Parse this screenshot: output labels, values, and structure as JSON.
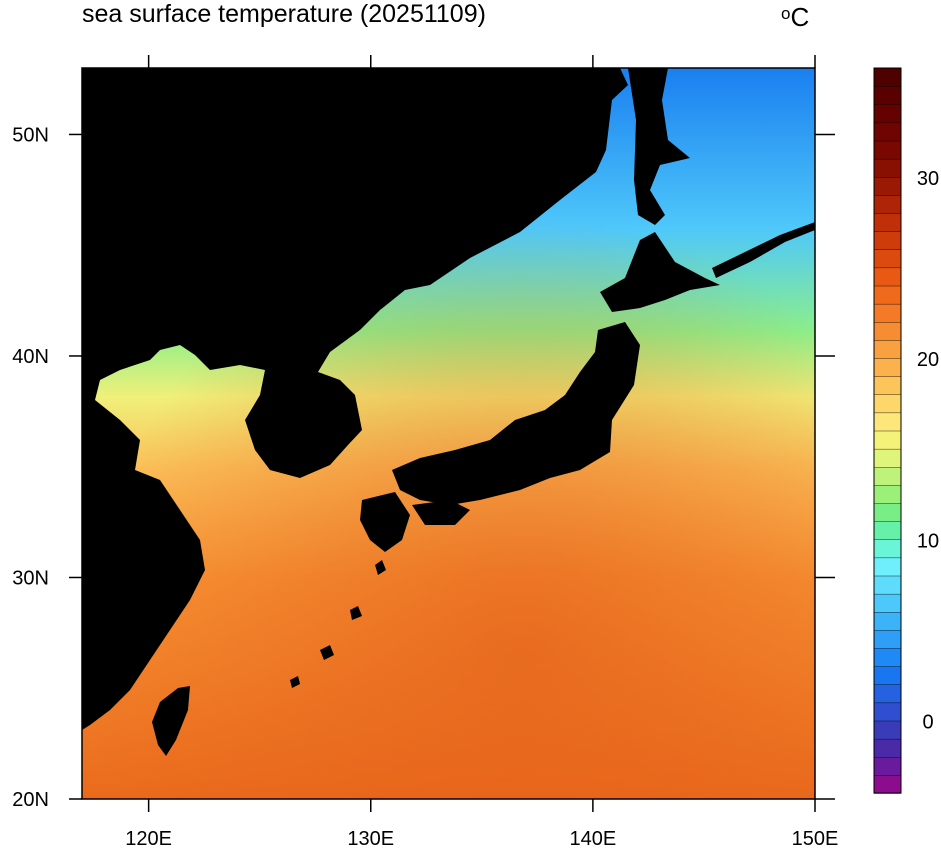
{
  "map": {
    "title": "sea surface temperature (20251109)",
    "unit_degree": "o",
    "unit_letter": "C",
    "lon_range": [
      117,
      150
    ],
    "lat_range": [
      20,
      53
    ],
    "lon_ticks": [
      {
        "value": 120,
        "label": "120E"
      },
      {
        "value": 130,
        "label": "130E"
      },
      {
        "value": 140,
        "label": "140E"
      },
      {
        "value": 150,
        "label": "150E"
      }
    ],
    "lat_ticks": [
      {
        "value": 20,
        "label": "20N"
      },
      {
        "value": 30,
        "label": "30N"
      },
      {
        "value": 40,
        "label": "40N"
      },
      {
        "value": 50,
        "label": "50N"
      }
    ],
    "land_color": "#000000"
  },
  "colorbar": {
    "min": -4,
    "max": 36,
    "step": 1,
    "tick_labels": [
      {
        "value": 0,
        "label": "0"
      },
      {
        "value": 10,
        "label": "10"
      },
      {
        "value": 20,
        "label": "20"
      },
      {
        "value": 30,
        "label": "30"
      }
    ],
    "colors": [
      "#8b0d8e",
      "#6a1a9c",
      "#4b2aa8",
      "#3a3bb8",
      "#2f4ed0",
      "#2561e0",
      "#1a76f0",
      "#1f89f5",
      "#2e9ef7",
      "#3cb3f8",
      "#4dc8fa",
      "#5fdcfb",
      "#6feefb",
      "#6af5d8",
      "#66f0a8",
      "#7aee86",
      "#9bf07a",
      "#bff27a",
      "#dff47a",
      "#f5f27a",
      "#fde77a",
      "#fdd76a",
      "#fcc55a",
      "#fbb24c",
      "#f9a040",
      "#f78d33",
      "#f47a28",
      "#f06a1c",
      "#e85a14",
      "#dd4a10",
      "#cf3c0c",
      "#bf2f08",
      "#ad2406",
      "#9a1904",
      "#871002",
      "#790800",
      "#700400",
      "#650200",
      "#5a0000",
      "#4f0000"
    ]
  }
}
